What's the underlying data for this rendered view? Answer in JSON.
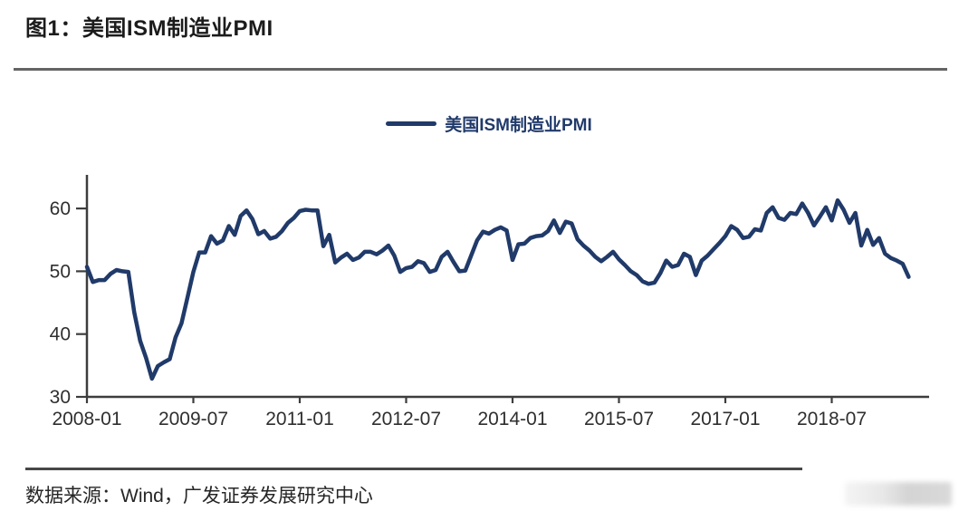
{
  "figure": {
    "title": "图1：美国ISM制造业PMI"
  },
  "legend": {
    "label": "美国ISM制造业PMI"
  },
  "source": {
    "text": "数据来源：Wind，广发证券发展研究中心"
  },
  "colors": {
    "line": "#203a69",
    "axis": "#3d3d3d",
    "tick_label": "#2f2f2f",
    "title": "#1b1b1b",
    "rule": "#646464",
    "source_text": "#262626"
  },
  "chart_data": {
    "type": "line",
    "title": "美国ISM制造业PMI",
    "xlabel": "",
    "ylabel": "",
    "grid": false,
    "legend_position": "top-center",
    "ylim": [
      30,
      65
    ],
    "y_ticks": [
      30,
      40,
      50,
      60
    ],
    "x_tick_labels": [
      "2008-01",
      "2009-07",
      "2011-01",
      "2012-07",
      "2014-01",
      "2015-07",
      "2017-01",
      "2018-07"
    ],
    "x_tick_month_interval": 18,
    "x_start": "2008-01",
    "x_end": "2019-08",
    "frequency": "monthly",
    "series": [
      {
        "name": "美国ISM制造业PMI",
        "values": [
          50.7,
          48.3,
          48.6,
          48.6,
          49.6,
          50.2,
          50.0,
          49.9,
          43.5,
          38.9,
          36.2,
          32.9,
          34.9,
          35.5,
          36.0,
          39.5,
          41.7,
          45.8,
          49.9,
          53.0,
          53.0,
          55.6,
          54.4,
          54.9,
          57.2,
          55.8,
          58.8,
          59.7,
          58.3,
          55.9,
          56.4,
          55.2,
          55.5,
          56.4,
          57.7,
          58.5,
          59.6,
          59.8,
          59.7,
          59.7,
          54.0,
          55.8,
          51.4,
          52.2,
          52.8,
          51.8,
          52.2,
          53.1,
          53.1,
          52.7,
          53.3,
          54.1,
          52.5,
          49.9,
          50.5,
          50.7,
          51.6,
          51.3,
          49.9,
          50.2,
          52.3,
          53.1,
          51.5,
          50.0,
          50.1,
          52.5,
          54.9,
          56.3,
          56.0,
          56.6,
          57.0,
          56.5,
          51.8,
          54.3,
          54.4,
          55.3,
          55.6,
          55.7,
          56.4,
          58.1,
          56.1,
          57.9,
          57.6,
          55.1,
          54.1,
          53.3,
          52.3,
          51.6,
          52.3,
          53.1,
          51.9,
          51.0,
          50.0,
          49.4,
          48.4,
          48.0,
          48.2,
          49.7,
          51.7,
          50.7,
          51.0,
          52.8,
          52.3,
          49.4,
          51.7,
          52.5,
          53.5,
          54.5,
          55.6,
          57.2,
          56.6,
          55.3,
          55.5,
          56.7,
          56.5,
          59.3,
          60.2,
          58.5,
          58.2,
          59.3,
          59.1,
          60.8,
          59.3,
          57.3,
          58.7,
          60.2,
          58.1,
          61.3,
          59.8,
          57.7,
          59.3,
          54.1,
          56.6,
          54.2,
          55.3,
          52.8,
          52.1,
          51.7,
          51.2,
          49.1
        ]
      }
    ]
  }
}
